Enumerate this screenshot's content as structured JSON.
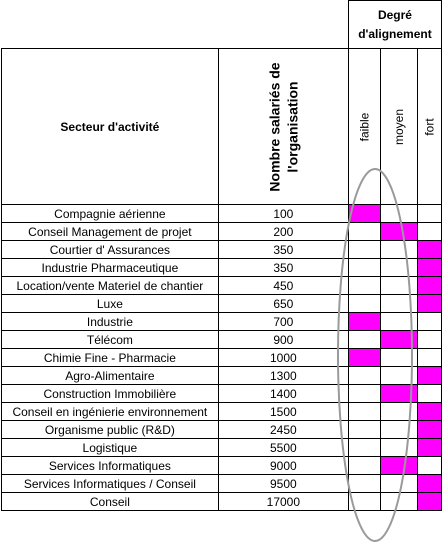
{
  "header": {
    "degree_title_line1": "Degré",
    "degree_title_line2": "d'alignement",
    "sector_title": "Secteur d'activité",
    "count_title_line1": "Nombre salariés de",
    "count_title_line2": "l'organisation",
    "levels": [
      "faible",
      "moyen",
      "fort"
    ]
  },
  "colors": {
    "highlight": "#ff00ff",
    "ellipse": "#9a9a9a"
  },
  "rows": [
    {
      "sector": "Compagnie aérienne",
      "count": "100",
      "level": 0
    },
    {
      "sector": "Conseil Management de projet",
      "count": "200",
      "level": 1
    },
    {
      "sector": "Courtier d' Assurances",
      "count": "350",
      "level": 2
    },
    {
      "sector": "Industrie Pharmaceutique",
      "count": "350",
      "level": 2
    },
    {
      "sector": "Location/vente Materiel de chantier",
      "count": "450",
      "level": 2
    },
    {
      "sector": "Luxe",
      "count": "650",
      "level": 2
    },
    {
      "sector": "Industrie",
      "count": "700",
      "level": 0
    },
    {
      "sector": "Télécom",
      "count": "900",
      "level": 1
    },
    {
      "sector": "Chimie Fine - Pharmacie",
      "count": "1000",
      "level": 0
    },
    {
      "sector": "Agro-Alimentaire",
      "count": "1300",
      "level": 2
    },
    {
      "sector": "Construction Immobilière",
      "count": "1400",
      "level": 1
    },
    {
      "sector": "Conseil en ingénierie environnement",
      "count": "1500",
      "level": 2
    },
    {
      "sector": "Organisme public (R&D)",
      "count": "2450",
      "level": 2
    },
    {
      "sector": "Logistique",
      "count": "5500",
      "level": 2
    },
    {
      "sector": "Services Informatiques",
      "count": "9000",
      "level": 1
    },
    {
      "sector": "Services Informatiques / Conseil",
      "count": "9500",
      "level": 2
    },
    {
      "sector": "Conseil",
      "count": "17000",
      "level": 2
    }
  ]
}
